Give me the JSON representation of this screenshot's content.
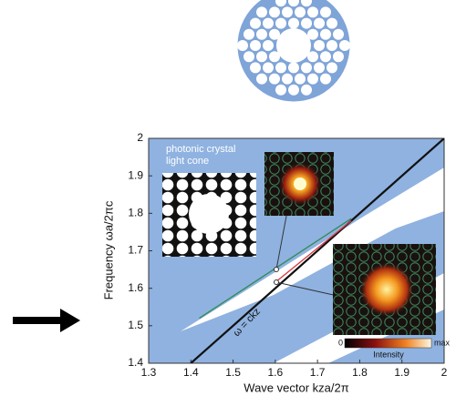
{
  "chart_data": {
    "type": "line",
    "xlabel": "Wave vector  kza/2π",
    "ylabel": "Frequency  ωa/2πc",
    "xlim": [
      1.3,
      2
    ],
    "xticks": [
      1.3,
      1.4,
      1.5,
      1.6,
      1.7,
      1.8,
      1.9,
      2
    ],
    "ylim": [
      1.4,
      2
    ],
    "yticks": [
      1.4,
      1.5,
      1.6,
      1.7,
      1.8,
      1.9,
      2
    ],
    "series": [
      {
        "color": "#111111",
        "x": [
          1.4,
          2
        ],
        "values": [
          1.4,
          2
        ]
      },
      {
        "color": "#2e8b57",
        "x": [
          1.42,
          1.78
        ],
        "values": [
          1.52,
          1.786
        ]
      },
      {
        "color": "#d9363e",
        "x": [
          1.6,
          1.78
        ],
        "values": [
          1.616,
          1.78
        ]
      }
    ],
    "annotations": [
      "photonic crystal",
      "light cone",
      "ω = ckz"
    ],
    "colorbar": {
      "min_label": "0",
      "title": "Intensity",
      "max_label": "max"
    }
  }
}
